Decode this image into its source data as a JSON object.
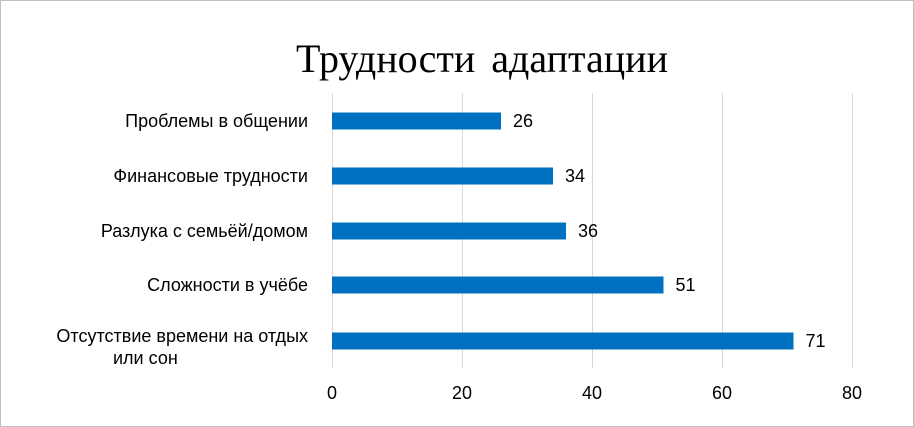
{
  "chart_data": {
    "type": "bar",
    "orientation": "horizontal",
    "title": "Трудности адаптации",
    "categories": [
      [
        "Проблемы в общении"
      ],
      [
        "Финансовые трудности"
      ],
      [
        "Разлука с семьёй/домом"
      ],
      [
        "Сложности в учёбе"
      ],
      [
        "Отсутствие времени на отдых",
        "или сон"
      ]
    ],
    "values": [
      26,
      34,
      36,
      51,
      71
    ],
    "xlim": [
      0,
      80
    ],
    "xticks": [
      0,
      20,
      40,
      60,
      80
    ],
    "grid": true,
    "legend": "none",
    "bar_color": "#0070C0",
    "grid_color": "#d9d9d9",
    "data_labels": true
  }
}
